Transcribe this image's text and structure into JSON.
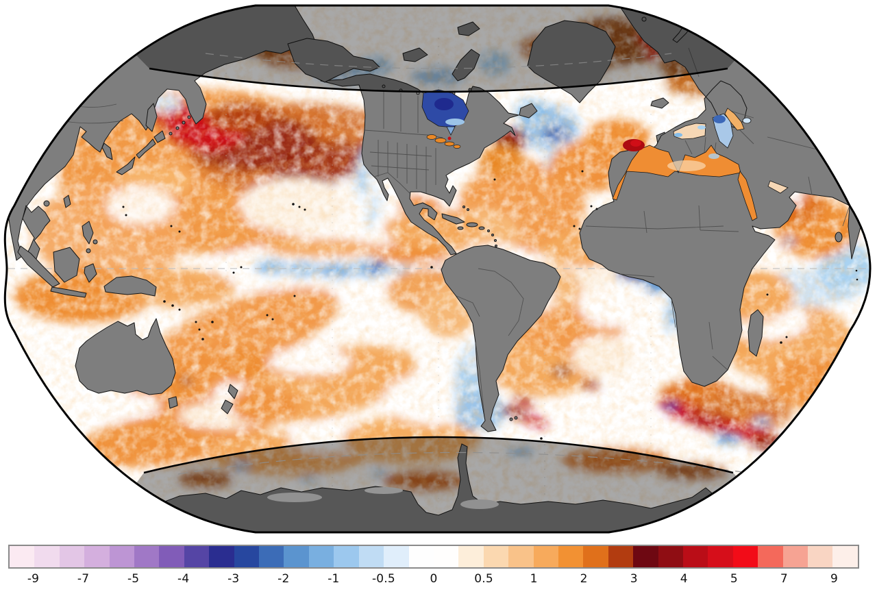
{
  "page": {
    "background": "#ffffff"
  },
  "map": {
    "description": "global sea-surface-temperature anomaly map, pseudocylindrical projection centered on the Americas",
    "land_color": "#7e7e7e",
    "outline_color": "#000000",
    "polar_dim_opacity": 0.34,
    "boundary_lines": [
      "60N",
      "60S"
    ],
    "graticule": {
      "equator_dashed": true,
      "meridians_dashed": true
    },
    "regions": [
      {
        "name": "northwest-pacific",
        "anomaly": "strong-warm"
      },
      {
        "name": "north-pacific-central",
        "anomaly": "warm-dark-patches"
      },
      {
        "name": "equatorial-east-pacific",
        "anomaly": "cool-wave-train"
      },
      {
        "name": "hudson-bay",
        "anomaly": "strong-cool"
      },
      {
        "name": "north-atlantic-subpolar",
        "anomaly": "cool-patch"
      },
      {
        "name": "gulf-of-guinea",
        "anomaly": "cool"
      },
      {
        "name": "mediterranean-northwest",
        "anomaly": "strong-warm-spot"
      },
      {
        "name": "southwest-atlantic",
        "anomaly": "mixed-warm-eddies"
      },
      {
        "name": "agulhas-south-indian",
        "anomaly": "strong-warm-eddies"
      },
      {
        "name": "siberian-arctic-seas",
        "anomaly": "strong-warm-dimmed"
      },
      {
        "name": "argentine-coast",
        "anomaly": "cool"
      },
      {
        "name": "arabian-sea",
        "anomaly": "warm"
      }
    ]
  },
  "colorbar": {
    "tick_labels": [
      "-9",
      "-7",
      "-5",
      "-4",
      "-3",
      "-2",
      "-1",
      "-0.5",
      "0",
      "0.5",
      "1",
      "2",
      "3",
      "4",
      "5",
      "7",
      "9"
    ],
    "segment_colors": [
      "#fbeaf2",
      "#f1dbee",
      "#e3c6e6",
      "#d4afde",
      "#bd95d4",
      "#a078c6",
      "#815cb8",
      "#5545a5",
      "#2a2d90",
      "#27479f",
      "#3c6cb7",
      "#5b94cf",
      "#79afe0",
      "#9cc8ee",
      "#c0dcf4",
      "#e0eefb",
      "#fefefe",
      "#fffefd",
      "#fdeeda",
      "#fbd8b0",
      "#f9c289",
      "#f7aa5c",
      "#f29133",
      "#e0701b",
      "#b23c10",
      "#6e0812",
      "#8f0d13",
      "#ba0d17",
      "#d60e1a",
      "#f20c18",
      "#f4695b",
      "#f6a393",
      "#f9d5c3",
      "#fdefe9"
    ],
    "border_color": "#8a8a8a",
    "label_color": "#111111"
  }
}
